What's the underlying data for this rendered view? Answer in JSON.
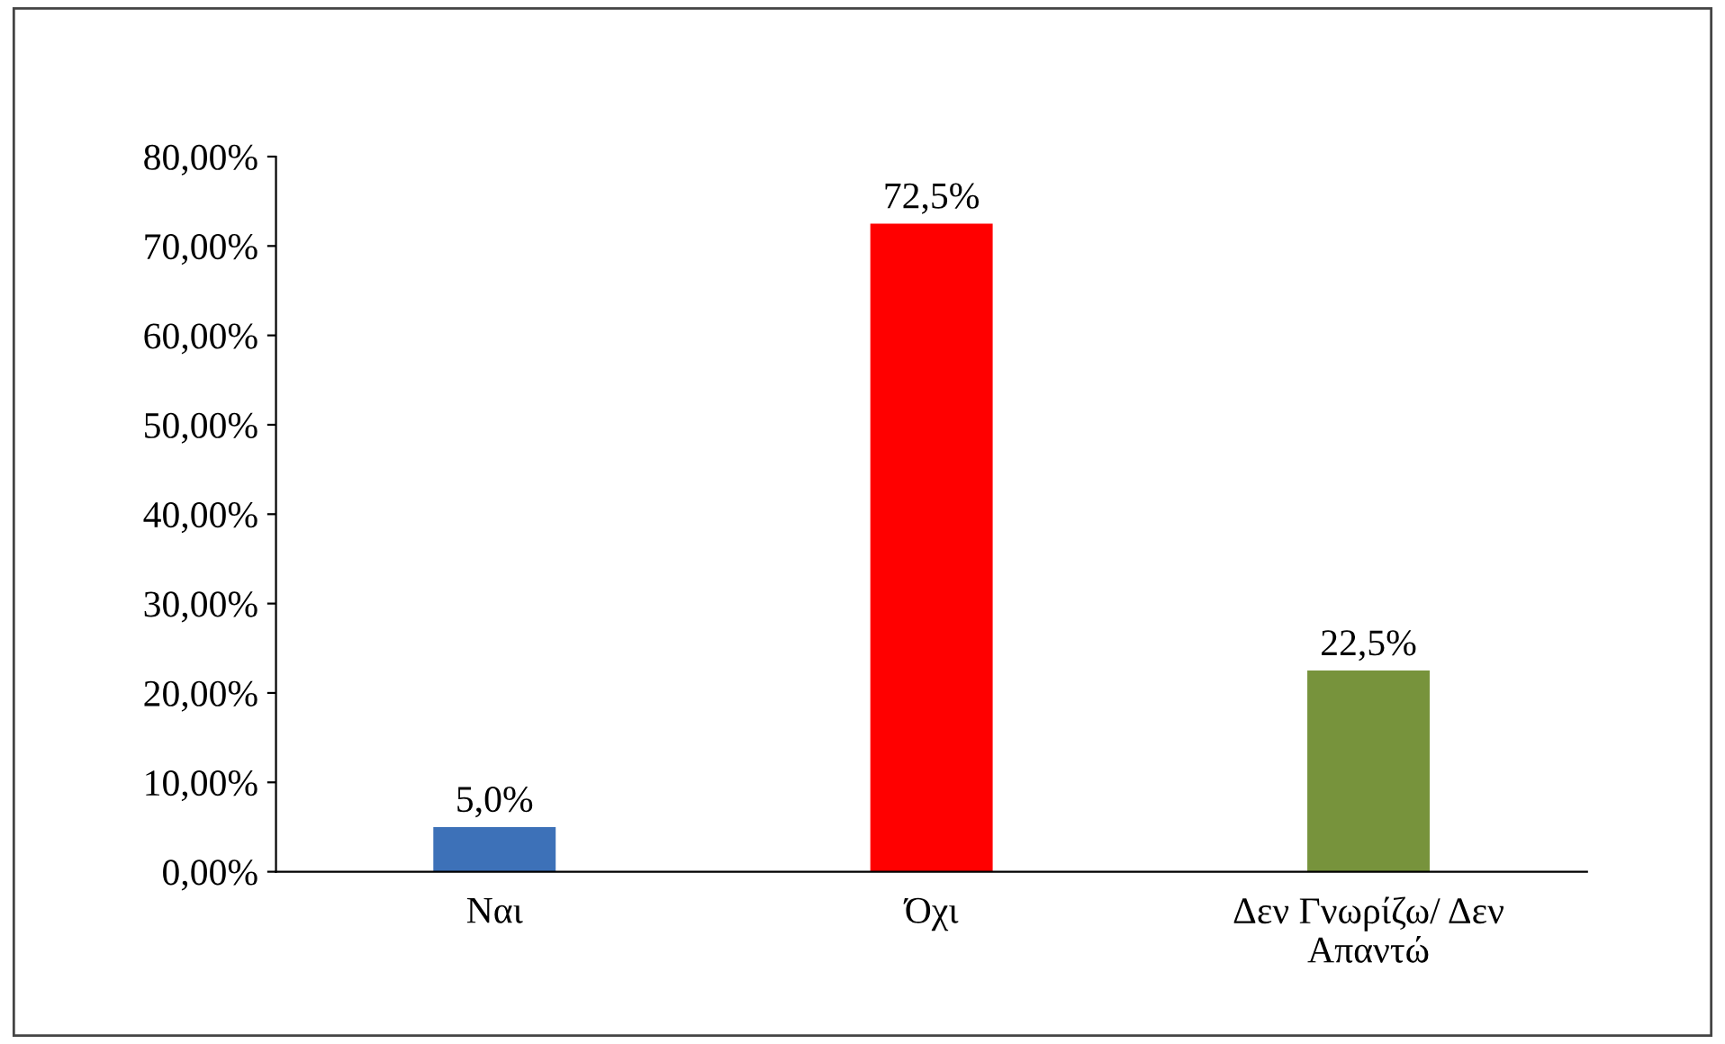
{
  "chart_data": {
    "type": "bar",
    "categories": [
      "Ναι",
      "Όχι",
      "Δεν Γνωρίζω/ Δεν\nΑπαντώ"
    ],
    "values": [
      5.0,
      72.5,
      22.5
    ],
    "colors": [
      "#3d71b8",
      "#ff0000",
      "#77933c"
    ],
    "value_labels": [
      "5,0%",
      "72,5%",
      "22,5%"
    ],
    "ylim": [
      0,
      80
    ],
    "yticks": [
      {
        "value": 0,
        "label": "0,00%"
      },
      {
        "value": 10,
        "label": "10,00%"
      },
      {
        "value": 20,
        "label": "20,00%"
      },
      {
        "value": 30,
        "label": "30,00%"
      },
      {
        "value": 40,
        "label": "40,00%"
      },
      {
        "value": 50,
        "label": "50,00%"
      },
      {
        "value": 60,
        "label": "60,00%"
      },
      {
        "value": 70,
        "label": "70,00%"
      },
      {
        "value": 80,
        "label": "80,00%"
      }
    ],
    "grid": false
  }
}
